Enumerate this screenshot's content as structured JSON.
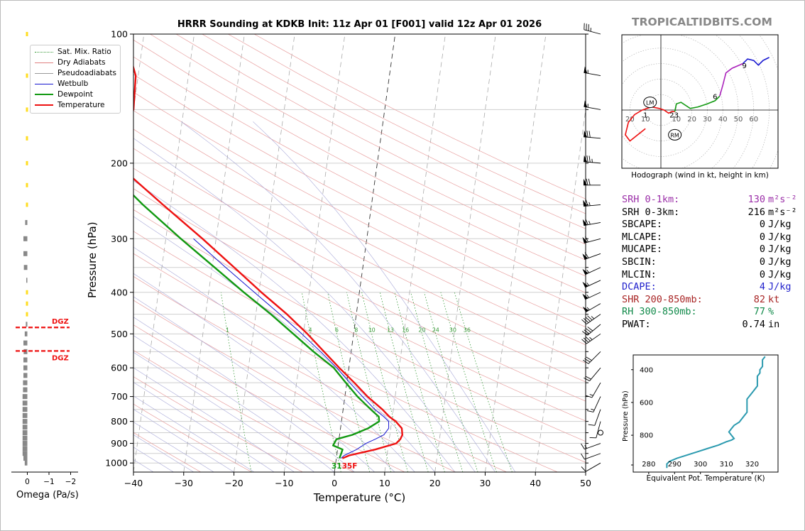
{
  "header": {
    "title": "HRRR Sounding at KDKB Init: 11z Apr 01 [F001] valid 12z Apr 01 2026",
    "site": "TROPICALTIDBITS.COM"
  },
  "chart_data": [
    {
      "type": "line",
      "subtype": "skew-t",
      "xlabel": "Temperature (°C)",
      "ylabel": "Pressure (hPa)",
      "xlim": [
        -40,
        50
      ],
      "ylim": [
        1050,
        100
      ],
      "yscale": "log",
      "x_ticks": [
        "−40",
        "−30",
        "−20",
        "−10",
        "0",
        "10",
        "20",
        "30",
        "40",
        "50"
      ],
      "y_ticks": [
        "100",
        "200",
        "300",
        "400",
        "500",
        "600",
        "700",
        "800",
        "900",
        "1000"
      ],
      "grid": true,
      "legend_position": "top-left",
      "legend": [
        {
          "name": "Sat. Mix. Ratio",
          "color": "#3a9a3a",
          "style": "dotted"
        },
        {
          "name": "Dry Adiabats",
          "color": "#e08080",
          "style": "solid"
        },
        {
          "name": "Pseudoadiabats",
          "color": "#999999",
          "style": "solid"
        },
        {
          "name": "Wetbulb",
          "color": "#1515d0",
          "style": "solid"
        },
        {
          "name": "Dewpoint",
          "color": "#119911",
          "style": "solid"
        },
        {
          "name": "Temperature",
          "color": "#ee1111",
          "style": "solid"
        }
      ],
      "mixing_ratio_labels": [
        "1",
        "4",
        "6",
        "8",
        "10",
        "13",
        "16",
        "20",
        "24",
        "30",
        "36"
      ],
      "mixing_ratio_values": [
        1,
        4,
        6,
        8,
        10,
        13,
        16,
        20,
        24,
        30,
        36
      ],
      "series": [
        {
          "name": "Temperature",
          "p": [
            975,
            960,
            930,
            900,
            880,
            860,
            830,
            800,
            780,
            750,
            700,
            650,
            600,
            550,
            500,
            450,
            400,
            350,
            300,
            250,
            200,
            175,
            150,
            125,
            100
          ],
          "t": [
            1.2,
            2.5,
            7.5,
            11.5,
            12.2,
            12.5,
            12.2,
            10.8,
            9.4,
            7.8,
            4.5,
            1.5,
            -1.9,
            -5.4,
            -9.2,
            -13.8,
            -19.5,
            -25.6,
            -32.7,
            -41.5,
            -52.0,
            -53.0,
            -50.0,
            -50.5,
            -54.0
          ]
        },
        {
          "name": "Dewpoint",
          "p": [
            975,
            955,
            930,
            910,
            880,
            860,
            830,
            800,
            780,
            750,
            700,
            650,
            600,
            550,
            500,
            450,
            400,
            350,
            300,
            250,
            200,
            175,
            150,
            125,
            100
          ],
          "t": [
            0.6,
            0.8,
            1.0,
            -1.0,
            -0.5,
            2.5,
            5.5,
            7.5,
            7.3,
            5.5,
            2.5,
            -0.2,
            -3.0,
            -7.5,
            -12.0,
            -17.0,
            -23.0,
            -29.5,
            -37.0,
            -45.5,
            -55.0,
            -58.0,
            -63.0,
            -71.0,
            -75.0
          ]
        },
        {
          "name": "Wetbulb",
          "p": [
            975,
            960,
            930,
            900,
            880,
            860,
            830,
            800,
            780,
            750,
            700,
            650,
            600,
            550,
            500,
            450,
            400,
            350,
            300
          ],
          "t": [
            0.9,
            1.5,
            3.8,
            5.5,
            7.2,
            8.8,
            9.6,
            9.4,
            8.3,
            6.3,
            3.5,
            0.6,
            -2.4,
            -6.1,
            -10.3,
            -15.2,
            -20.9,
            -27.3,
            -34.5
          ]
        }
      ],
      "surface_label": "31",
      "surface_label_extra": "35F",
      "dgz_levels": [
        483,
        548
      ],
      "dgz_label": "DGZ"
    },
    {
      "type": "bar",
      "name": "omega",
      "xlabel": "Omega (Pa/s)",
      "x_ticks": [
        "0",
        "−1",
        "−2"
      ],
      "xlim": [
        0.2,
        -2.0
      ],
      "positive_color": "#ffdd22",
      "negative_color": "#888888",
      "p": [
        100,
        125,
        150,
        175,
        200,
        225,
        250,
        275,
        300,
        325,
        350,
        375,
        400,
        425,
        450,
        475,
        500,
        525,
        550,
        575,
        600,
        625,
        650,
        675,
        700,
        725,
        750,
        775,
        800,
        825,
        850,
        875,
        900,
        925,
        950,
        975,
        1000
      ],
      "values": [
        0.02,
        0.02,
        0.02,
        0.02,
        0.03,
        0.03,
        0.02,
        -0.1,
        -0.18,
        -0.18,
        -0.16,
        -0.05,
        0.03,
        0.03,
        0.02,
        -0.07,
        -0.12,
        -0.18,
        -0.17,
        -0.18,
        -0.18,
        -0.18,
        -0.2,
        -0.2,
        -0.22,
        -0.22,
        -0.22,
        -0.22,
        -0.22,
        -0.22,
        -0.22,
        -0.22,
        -0.22,
        -0.22,
        -0.22,
        -0.18,
        -0.12
      ]
    },
    {
      "type": "line",
      "name": "hodograph",
      "caption": "Hodograph (wind in kt, height in km)",
      "ring_labels": [
        "20",
        "10",
        "10",
        "20",
        "30",
        "40",
        "50",
        "60"
      ],
      "storm_motion": [
        {
          "label": "LM",
          "u": -7,
          "v": 5
        },
        {
          "label": "RM",
          "u": 9,
          "v": -16
        }
      ],
      "segments": [
        {
          "color": "#ee1111",
          "points": [
            [
              -10,
              -12
            ],
            [
              -20,
              -20
            ],
            [
              -23,
              -16
            ],
            [
              -21,
              -8
            ],
            [
              -17,
              -3
            ],
            [
              -12,
              0
            ],
            [
              -6,
              2
            ],
            [
              -1,
              1
            ],
            [
              2,
              0
            ],
            [
              5,
              -2
            ],
            [
              7,
              -1
            ],
            [
              9,
              -1
            ]
          ]
        },
        {
          "color": "#119911",
          "points": [
            [
              9,
              -1
            ],
            [
              10,
              4
            ],
            [
              13,
              5
            ],
            [
              19,
              1
            ],
            [
              24,
              2
            ],
            [
              30,
              4
            ],
            [
              35,
              6
            ],
            [
              38,
              9
            ]
          ]
        },
        {
          "color": "#aa22bb",
          "points": [
            [
              38,
              9
            ],
            [
              40,
              16
            ],
            [
              42,
              24
            ],
            [
              46,
              27
            ],
            [
              53,
              30
            ]
          ]
        },
        {
          "color": "#1515d0",
          "points": [
            [
              53,
              30
            ],
            [
              56,
              33
            ],
            [
              60,
              32
            ],
            [
              63,
              29
            ],
            [
              66,
              32
            ],
            [
              70,
              34
            ]
          ]
        }
      ],
      "height_labels": [
        {
          "text": "1",
          "u": -10,
          "v": -3
        },
        {
          "text": "2",
          "u": 7,
          "v": -3
        },
        {
          "text": "3",
          "u": 10,
          "v": -3
        },
        {
          "text": "6",
          "u": 35,
          "v": 9
        },
        {
          "text": "9",
          "u": 54,
          "v": 29
        }
      ]
    },
    {
      "type": "line",
      "name": "theta-e",
      "xlabel": "Equivalent Pot. Temperature (K)",
      "ylabel": "Pressure (hPa)",
      "x_ticks": [
        "280",
        "290",
        "300",
        "310",
        "320"
      ],
      "y_ticks": [
        "400",
        "600",
        "800"
      ],
      "xlim": [
        274,
        330
      ],
      "ylim": [
        1025,
        310
      ],
      "line_color": "#2b9aaf",
      "p": [
        1000,
        975,
        960,
        940,
        920,
        900,
        880,
        860,
        840,
        830,
        820,
        800,
        780,
        760,
        740,
        720,
        700,
        680,
        660,
        640,
        620,
        600,
        580,
        560,
        540,
        520,
        500,
        480,
        460,
        440,
        420,
        400,
        380,
        360,
        340,
        320
      ],
      "values": [
        287,
        287,
        288,
        291,
        295,
        299,
        303,
        307,
        310,
        312,
        313,
        312,
        311,
        312,
        313,
        315,
        316,
        317,
        318,
        318,
        318,
        318,
        318,
        319,
        320,
        321,
        322,
        322,
        322,
        322,
        323,
        323,
        324,
        324,
        324,
        325
      ]
    }
  ],
  "indices": [
    {
      "label": "SRH 0-1km:",
      "value": "130",
      "unit": "m²s⁻²",
      "color": "#9b2fa8"
    },
    {
      "label": "SRH 0-3km:",
      "value": "216",
      "unit": "m²s⁻²",
      "color": "#000000"
    },
    {
      "label": "SBCAPE:",
      "value": "0",
      "unit": "J/kg",
      "color": "#000000"
    },
    {
      "label": "MLCAPE:",
      "value": "0",
      "unit": "J/kg",
      "color": "#000000"
    },
    {
      "label": "MUCAPE:",
      "value": "0",
      "unit": "J/kg",
      "color": "#000000"
    },
    {
      "label": "SBCIN:",
      "value": "0",
      "unit": "J/kg",
      "color": "#000000"
    },
    {
      "label": "MLCIN:",
      "value": "0",
      "unit": "J/kg",
      "color": "#000000"
    },
    {
      "label": "DCAPE:",
      "value": "4",
      "unit": "J/kg",
      "color": "#2222cc"
    },
    {
      "label": "SHR 200-850mb:",
      "value": "82",
      "unit": "kt",
      "color": "#a82424"
    },
    {
      "label": "RH 300-850mb:",
      "value": "77",
      "unit": "%",
      "color": "#118a4a"
    },
    {
      "label": "PWAT:",
      "value": "0.74",
      "unit": "in",
      "color": "#000000"
    }
  ],
  "winds": [
    {
      "p": 100,
      "dir": 285,
      "spd": 35
    },
    {
      "p": 125,
      "dir": 280,
      "spd": 55
    },
    {
      "p": 150,
      "dir": 280,
      "spd": 55
    },
    {
      "p": 175,
      "dir": 275,
      "spd": 70
    },
    {
      "p": 200,
      "dir": 275,
      "spd": 75
    },
    {
      "p": 225,
      "dir": 270,
      "spd": 70
    },
    {
      "p": 250,
      "dir": 265,
      "spd": 65
    },
    {
      "p": 275,
      "dir": 260,
      "spd": 65
    },
    {
      "p": 300,
      "dir": 255,
      "spd": 60
    },
    {
      "p": 325,
      "dir": 250,
      "spd": 60
    },
    {
      "p": 350,
      "dir": 245,
      "spd": 55
    },
    {
      "p": 375,
      "dir": 245,
      "spd": 55
    },
    {
      "p": 400,
      "dir": 245,
      "spd": 55
    },
    {
      "p": 425,
      "dir": 240,
      "spd": 55
    },
    {
      "p": 450,
      "dir": 235,
      "spd": 45
    },
    {
      "p": 475,
      "dir": 230,
      "spd": 40
    },
    {
      "p": 500,
      "dir": 235,
      "spd": 35
    },
    {
      "p": 550,
      "dir": 225,
      "spd": 30
    },
    {
      "p": 600,
      "dir": 220,
      "spd": 20
    },
    {
      "p": 650,
      "dir": 210,
      "spd": 15
    },
    {
      "p": 700,
      "dir": 205,
      "spd": 15
    },
    {
      "p": 750,
      "dir": 200,
      "spd": 10
    },
    {
      "p": 800,
      "dir": 195,
      "spd": 10
    },
    {
      "p": 850,
      "dir": 0,
      "spd": 0
    },
    {
      "p": 900,
      "dir": 250,
      "spd": 15
    },
    {
      "p": 950,
      "dir": 250,
      "spd": 10
    },
    {
      "p": 1000,
      "dir": 240,
      "spd": 10
    }
  ]
}
